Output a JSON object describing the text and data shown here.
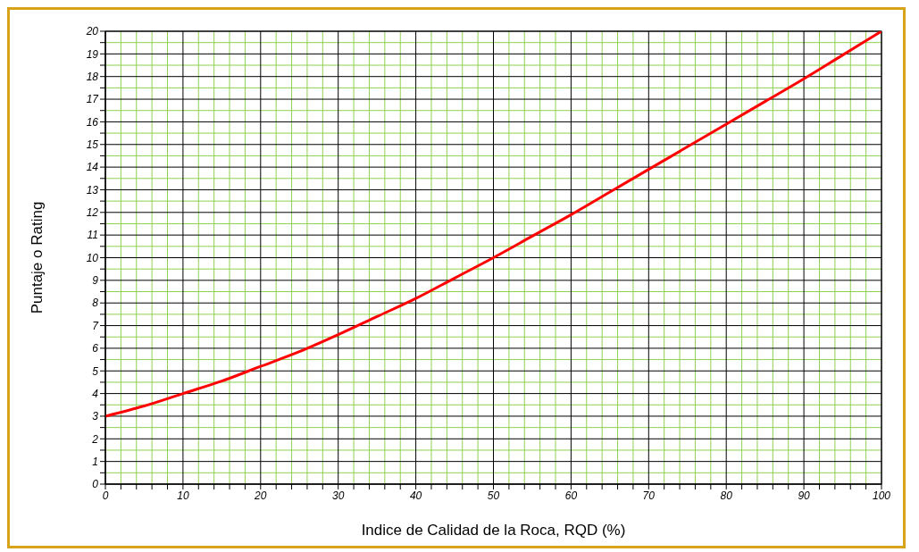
{
  "chart_data": {
    "type": "line",
    "xlabel": "Indice de Calidad de la Roca, RQD  (%)",
    "ylabel": "Puntaje  o  Rating",
    "x": [
      0,
      5,
      10,
      15,
      20,
      25,
      30,
      35,
      40,
      45,
      50,
      55,
      60,
      65,
      70,
      75,
      80,
      85,
      90,
      95,
      100
    ],
    "series": [
      {
        "color": "#ff0000",
        "values": [
          3,
          3.45,
          4,
          4.55,
          5.2,
          5.85,
          6.6,
          7.4,
          8.2,
          9.1,
          10,
          10.95,
          11.9,
          12.9,
          13.9,
          14.9,
          15.9,
          16.9,
          17.9,
          18.95,
          20
        ]
      }
    ],
    "xlim": [
      0,
      100
    ],
    "xticks": [
      0,
      {
        "value": 2,
        "label": null
      },
      {
        "value": 4,
        "label": null
      },
      {
        "value": 6,
        "label": null
      },
      {
        "value": 8,
        "label": null
      },
      10,
      {
        "value": 12,
        "label": null
      },
      {
        "value": 14,
        "label": null
      },
      {
        "value": 16,
        "label": null
      },
      {
        "value": 18,
        "label": null
      },
      20,
      {
        "value": 22,
        "label": null
      },
      {
        "value": 24,
        "label": null
      },
      {
        "value": 26,
        "label": null
      },
      {
        "value": 28,
        "label": null
      },
      30,
      {
        "value": 32,
        "label": null
      },
      {
        "value": 34,
        "label": null
      },
      {
        "value": 36,
        "label": null
      },
      {
        "value": 38,
        "label": null
      },
      40,
      {
        "value": 42,
        "label": null
      },
      {
        "value": 44,
        "label": null
      },
      {
        "value": 46,
        "label": null
      },
      {
        "value": 48,
        "label": null
      },
      50,
      {
        "value": 52,
        "label": null
      },
      {
        "value": 54,
        "label": null
      },
      {
        "value": 56,
        "label": null
      },
      {
        "value": 58,
        "label": null
      },
      60,
      {
        "value": 62,
        "label": null
      },
      {
        "value": 64,
        "label": null
      },
      {
        "value": 66,
        "label": null
      },
      {
        "value": 68,
        "label": null
      },
      70,
      {
        "value": 72,
        "label": null
      },
      {
        "value": 74,
        "label": null
      },
      {
        "value": 76,
        "label": null
      },
      {
        "value": 78,
        "label": null
      },
      80,
      {
        "value": 82,
        "label": null
      },
      {
        "value": 84,
        "label": null
      },
      {
        "value": 86,
        "label": null
      },
      {
        "value": 88,
        "label": null
      },
      90,
      {
        "value": 92,
        "label": null
      },
      {
        "value": 94,
        "label": null
      },
      {
        "value": 96,
        "label": null
      },
      {
        "value": 98,
        "label": null
      },
      100
    ],
    "ylim": [
      0,
      20
    ],
    "yticks": [
      0,
      {
        "value": 0.5,
        "label": null
      },
      1,
      {
        "value": 1.5,
        "label": null
      },
      2,
      {
        "value": 2.5,
        "label": null
      },
      3,
      {
        "value": 3.5,
        "label": null
      },
      4,
      {
        "value": 4.5,
        "label": null
      },
      5,
      {
        "value": 5.5,
        "label": null
      },
      6,
      {
        "value": 6.5,
        "label": null
      },
      7,
      {
        "value": 7.5,
        "label": null
      },
      8,
      {
        "value": 8.5,
        "label": null
      },
      9,
      {
        "value": 9.5,
        "label": null
      },
      10,
      {
        "value": 10.5,
        "label": null
      },
      11,
      {
        "value": 11.5,
        "label": null
      },
      12,
      {
        "value": 12.5,
        "label": null
      },
      13,
      {
        "value": 13.5,
        "label": null
      },
      14,
      {
        "value": 14.5,
        "label": null
      },
      15,
      {
        "value": 15.5,
        "label": null
      },
      16,
      {
        "value": 16.5,
        "label": null
      },
      17,
      {
        "value": 17.5,
        "label": null
      },
      18,
      {
        "value": 18.5,
        "label": null
      },
      19,
      {
        "value": 19.5,
        "label": null
      },
      20
    ],
    "grid": true,
    "legend": false,
    "marker": "none",
    "line_style": "solid"
  }
}
